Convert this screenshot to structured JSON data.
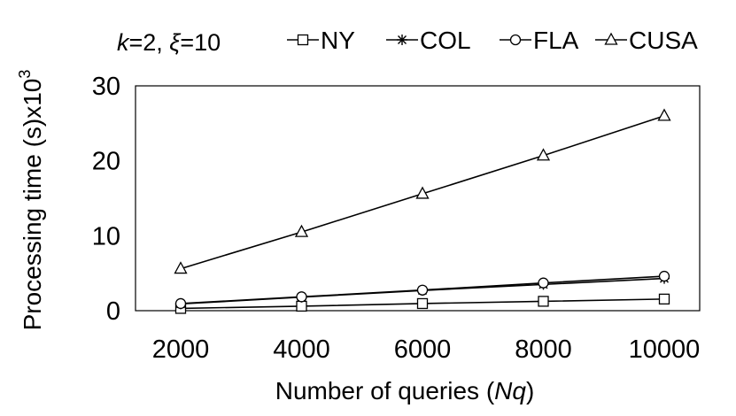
{
  "chart_data": {
    "type": "line",
    "annotation": {
      "k_label": "k",
      "k_value": "=2, ",
      "xi_label": "ξ",
      "xi_value": "=10"
    },
    "xlabel": {
      "prefix": "Number of queries (",
      "italic": "Nq",
      "suffix": ")"
    },
    "ylabel": {
      "main": "Processing time (s)x10",
      "sup": "3"
    },
    "x": [
      2000,
      4000,
      6000,
      8000,
      10000
    ],
    "x_tick_labels": [
      "2000",
      "4000",
      "6000",
      "8000",
      "10000"
    ],
    "ylim": [
      0,
      30
    ],
    "y_ticks": [
      0,
      10,
      20,
      30
    ],
    "y_tick_labels": [
      "0",
      "10",
      "20",
      "30"
    ],
    "grid": false,
    "legend_position": "top",
    "series": [
      {
        "name": "NY",
        "marker": "square",
        "values": [
          0.3,
          0.6,
          0.95,
          1.25,
          1.55
        ]
      },
      {
        "name": "COL",
        "marker": "asterisk",
        "values": [
          0.9,
          1.8,
          2.7,
          3.5,
          4.3
        ]
      },
      {
        "name": "FLA",
        "marker": "circle",
        "values": [
          0.95,
          1.85,
          2.75,
          3.7,
          4.6
        ]
      },
      {
        "name": "CUSA",
        "marker": "triangle",
        "values": [
          5.6,
          10.5,
          15.6,
          20.7,
          26.0
        ]
      }
    ]
  }
}
